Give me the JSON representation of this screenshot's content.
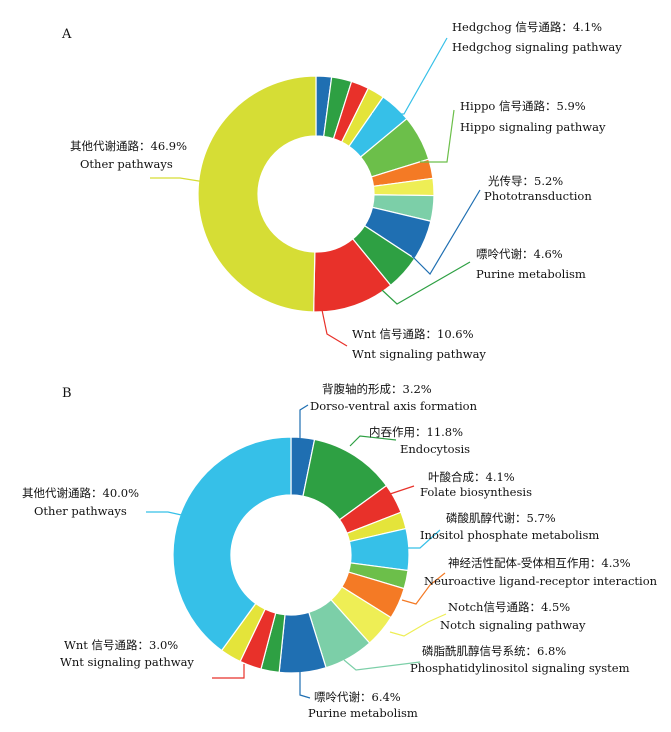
{
  "chart_data": [
    {
      "type": "pie",
      "panel_label": "A",
      "labeled": [
        {
          "zh": "Hedgchog 信号通路：",
          "value_text": "4.1%",
          "en": "Hedgchog signaling pathway"
        },
        {
          "zh": "Hippo 信号通路：",
          "value_text": "5.9%",
          "en": "Hippo signaling pathway"
        },
        {
          "zh": "光传导：",
          "value_text": "5.2%",
          "en": "Phototransduction"
        },
        {
          "zh": "嘌呤代谢：",
          "value_text": "4.6%",
          "en": "Purine metabolism"
        },
        {
          "zh": "Wnt 信号通路：",
          "value_text": "10.6%",
          "en": "Wnt signaling pathway"
        },
        {
          "zh": "其他代谢通路：",
          "value_text": "46.9%",
          "en": "Other pathways"
        }
      ],
      "slices": [
        {
          "value": 2.0,
          "color": "#1f6fb2"
        },
        {
          "value": 2.6,
          "color": "#2ea043"
        },
        {
          "value": 2.3,
          "color": "#e8312a"
        },
        {
          "value": 2.2,
          "color": "#e4e43a"
        },
        {
          "value": 4.1,
          "color": "#36c0e8"
        },
        {
          "value": 5.9,
          "color": "#6cbf4a"
        },
        {
          "value": 2.5,
          "color": "#f47a25"
        },
        {
          "value": 2.2,
          "color": "#eeee55"
        },
        {
          "value": 3.3,
          "color": "#7ccfa8"
        },
        {
          "value": 5.2,
          "color": "#1f6fb2"
        },
        {
          "value": 4.6,
          "color": "#2ea043"
        },
        {
          "value": 10.6,
          "color": "#e8312a"
        },
        {
          "value": 46.9,
          "color": "#d6dd35"
        }
      ]
    },
    {
      "type": "pie",
      "panel_label": "B",
      "labeled": [
        {
          "zh": "背腹轴的形成：",
          "value_text": "3.2%",
          "en": "Dorso-ventral axis formation"
        },
        {
          "zh": "内吞作用：",
          "value_text": "11.8%",
          "en": "Endocytosis"
        },
        {
          "zh": "叶酸合成：",
          "value_text": "4.1%",
          "en": "Folate biosynthesis"
        },
        {
          "zh": "磷酸肌醇代谢：",
          "value_text": "5.7%",
          "en": "Inositol phosphate metabolism"
        },
        {
          "zh": "神经活性配体-受体相互作用：",
          "value_text": "4.3%",
          "en": "Neuroactive ligand-receptor interaction"
        },
        {
          "zh": "Notch信号通路：",
          "value_text": "4.5%",
          "en": "Notch signaling pathway"
        },
        {
          "zh": "磷脂酰肌醇信号系统：",
          "value_text": "6.8%",
          "en": "Phosphatidylinositol signaling system"
        },
        {
          "zh": "嘌呤代谢：",
          "value_text": "6.4%",
          "en": "Purine metabolism"
        },
        {
          "zh": "Wnt 信号通路：",
          "value_text": "3.0%",
          "en": "Wnt signaling pathway"
        },
        {
          "zh": "其他代谢通路：",
          "value_text": "40.0%",
          "en": "Other pathways"
        }
      ],
      "slices": [
        {
          "value": 3.2,
          "color": "#1f6fb2"
        },
        {
          "value": 11.8,
          "color": "#2ea043"
        },
        {
          "value": 4.1,
          "color": "#e8312a"
        },
        {
          "value": 2.3,
          "color": "#e4e43a"
        },
        {
          "value": 5.7,
          "color": "#36c0e8"
        },
        {
          "value": 2.5,
          "color": "#6cbf4a"
        },
        {
          "value": 4.3,
          "color": "#f47a25"
        },
        {
          "value": 4.5,
          "color": "#eeee55"
        },
        {
          "value": 6.8,
          "color": "#7ccfa8"
        },
        {
          "value": 6.4,
          "color": "#1f6fb2"
        },
        {
          "value": 2.5,
          "color": "#2ea043"
        },
        {
          "value": 3.0,
          "color": "#e8312a"
        },
        {
          "value": 2.9,
          "color": "#e4e43a"
        },
        {
          "value": 40.0,
          "color": "#36c0e8"
        }
      ]
    }
  ]
}
